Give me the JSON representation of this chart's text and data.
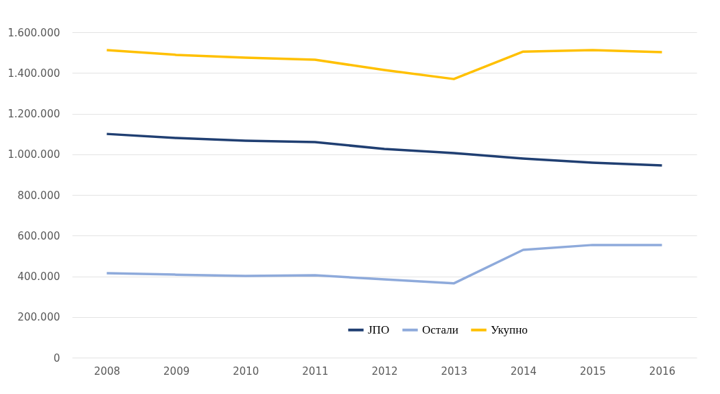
{
  "chart_data": {
    "type": "line",
    "categories": [
      "2008",
      "2009",
      "2010",
      "2011",
      "2012",
      "2013",
      "2014",
      "2015",
      "2016"
    ],
    "series": [
      {
        "name": "ЈПО",
        "color": "#203f72",
        "values": [
          1100000,
          1080000,
          1067000,
          1060000,
          1026000,
          1006000,
          979000,
          959000,
          945000
        ]
      },
      {
        "name": "Остали",
        "color": "#8eaadb",
        "values": [
          415000,
          408000,
          402000,
          405000,
          385000,
          365000,
          530000,
          554000,
          554000
        ]
      },
      {
        "name": "Укупно",
        "color": "#ffc000",
        "values": [
          1512000,
          1489000,
          1475000,
          1465000,
          1414000,
          1370000,
          1505000,
          1512000,
          1502000
        ]
      }
    ],
    "ylim": [
      0,
      1600000
    ],
    "yticks": [
      0,
      {
        "value": 200000,
        "label": "200.000"
      },
      {
        "value": 400000,
        "label": "400.000"
      },
      {
        "value": 600000,
        "label": "600.000"
      },
      {
        "value": 800000,
        "label": "800.000"
      },
      {
        "value": 1000000,
        "label": "1.000.000"
      },
      {
        "value": 1200000,
        "label": "1.200.000"
      },
      {
        "value": 1400000,
        "label": "1.400.000"
      },
      {
        "value": 1600000,
        "label": "1.600.000"
      }
    ],
    "grid": "y",
    "legend": "bottom right",
    "marker": "none",
    "line_style": "solid"
  }
}
